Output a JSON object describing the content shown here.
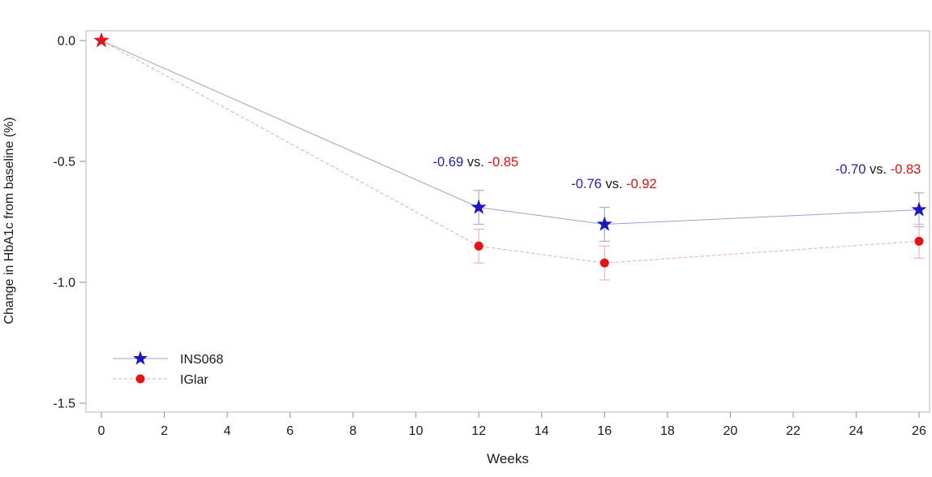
{
  "chart_data": {
    "type": "line",
    "title": "",
    "xlabel": "Weeks",
    "ylabel": "Change in HbA1c from baseline (%)",
    "x_ticks": [
      0,
      2,
      4,
      6,
      8,
      10,
      12,
      14,
      16,
      18,
      20,
      22,
      24,
      26
    ],
    "x_tick_labels": [
      "0",
      "2",
      "4",
      "6",
      "8",
      "10",
      "12",
      "14",
      "16",
      "18",
      "20",
      "22",
      "24",
      "26"
    ],
    "y_ticks": [
      0.0,
      -0.5,
      -1.0,
      -1.5
    ],
    "y_tick_labels": [
      "0.0",
      "-0.5",
      "-1.0",
      "-1.5"
    ],
    "xlim": [
      -0.5,
      26.3
    ],
    "ylim": [
      -1.54,
      0.04
    ],
    "grid": false,
    "legend_position": "inside-bottom-left",
    "series": [
      {
        "name": "INS068",
        "marker": "star",
        "marker_color": "#1c17c8",
        "line_color": "#9aa2d0",
        "line_style": "solid",
        "error_color": "#a8aecb",
        "x": [
          0,
          12,
          16,
          26
        ],
        "y": [
          0.0,
          -0.69,
          -0.76,
          -0.7
        ],
        "yerr": [
          0,
          0.07,
          0.07,
          0.07
        ]
      },
      {
        "name": "IGlar",
        "marker": "circle",
        "marker_color": "#e81212",
        "line_color": "#f0a5a3",
        "line_style": "dashed",
        "error_color": "#f2b3b0",
        "x": [
          0,
          12,
          16,
          26
        ],
        "y": [
          0.0,
          -0.85,
          -0.92,
          -0.83
        ],
        "yerr": [
          0,
          0.07,
          0.07,
          0.07
        ]
      }
    ],
    "annotations": [
      {
        "x": 11.9,
        "y": -0.52,
        "ins068_value": "-0.69",
        "separator": "vs.",
        "iglar_value": "-0.85"
      },
      {
        "x": 16.3,
        "y": -0.61,
        "ins068_value": "-0.76",
        "separator": "vs.",
        "iglar_value": "-0.92"
      },
      {
        "x": 24.7,
        "y": -0.55,
        "ins068_value": "-0.70",
        "separator": "vs.",
        "iglar_value": "-0.83"
      }
    ],
    "annotation_colors": {
      "ins068": "#2222bb",
      "separator": "#1a1a1a",
      "iglar": "#dd1111"
    },
    "colors": {
      "axis_frame": "#c8c8c8",
      "tick": "#8f8f8f",
      "text": "#1a1a1a"
    }
  }
}
